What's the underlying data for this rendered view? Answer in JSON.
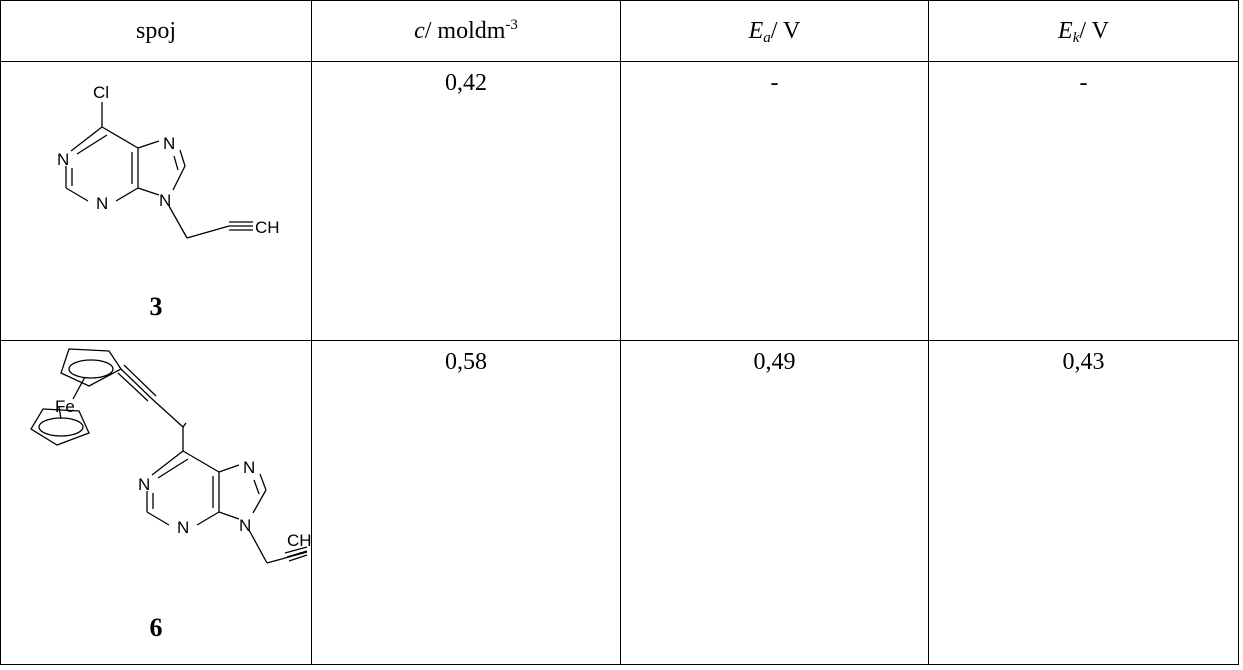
{
  "table": {
    "headers": {
      "col1": "spoj",
      "col2_var": "c",
      "col2_unit": "/ moldm",
      "col2_exp": "-3",
      "col3_var": "E",
      "col3_sub": "a",
      "col3_unit": "/ V",
      "col4_var": "E",
      "col4_sub": "k",
      "col4_unit": "/ V"
    },
    "rows": [
      {
        "compound_number": "3",
        "atoms": {
          "cl": "Cl",
          "n1": "N",
          "n3": "N",
          "n7": "N",
          "n9": "N",
          "ch": "CH"
        },
        "c": "0,42",
        "Ea": "-",
        "Ek": "-"
      },
      {
        "compound_number": "6",
        "atoms": {
          "fe": "Fe",
          "n1": "N",
          "n3": "N",
          "n7": "N",
          "n9": "N",
          "ch": "CH"
        },
        "c": "0,58",
        "Ea": "0,49",
        "Ek": "0,43"
      }
    ]
  }
}
